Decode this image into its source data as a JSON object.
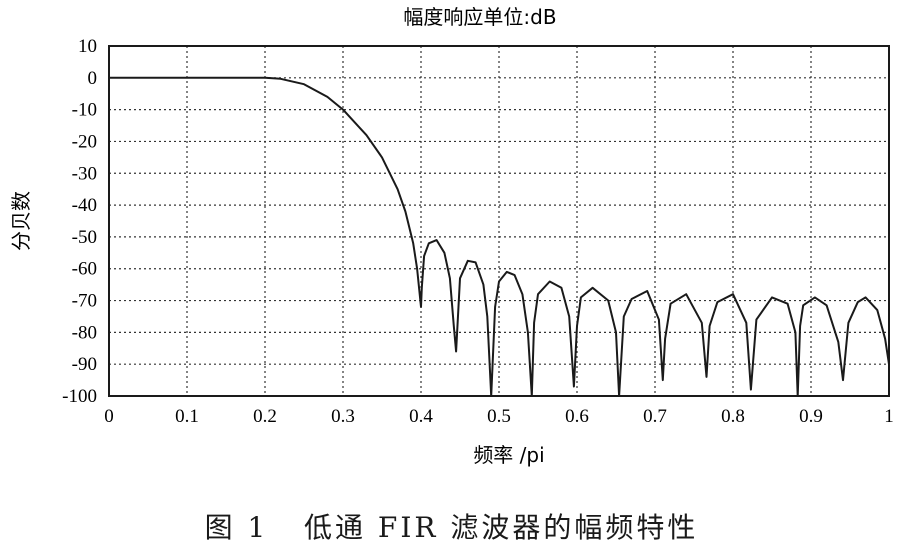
{
  "caption": "图 1   低通 FIR 滤波器的幅频特性",
  "chart_data": {
    "type": "line",
    "title": "幅度响应单位:dB",
    "xlabel": "频率 /pi",
    "ylabel": "分贝数",
    "xlim": [
      0,
      1
    ],
    "ylim": [
      -100,
      10
    ],
    "xticks": [
      0,
      0.1,
      0.2,
      0.3,
      0.4,
      0.5,
      0.6,
      0.7,
      0.8,
      0.9,
      1
    ],
    "xtick_labels": [
      "0",
      "0.1",
      "0.2",
      "0.3",
      "0.4",
      "0.5",
      "0.6",
      "0.7",
      "0.8",
      "0.9",
      "1"
    ],
    "yticks": [
      10,
      0,
      -10,
      -20,
      -30,
      -40,
      -50,
      -60,
      -70,
      -80,
      -90,
      -100
    ],
    "ytick_labels": [
      "10",
      "0",
      "-10",
      "-20",
      "-30",
      "-40",
      "-50",
      "-60",
      "-70",
      "-80",
      "-90",
      "-100"
    ],
    "grid": true,
    "grid_style": "dotted",
    "line_color": "#1a1a1a",
    "series": [
      {
        "x": [
          0,
          0.05,
          0.1,
          0.15,
          0.2,
          0.22,
          0.25,
          0.28,
          0.3,
          0.33,
          0.35,
          0.37,
          0.38,
          0.39,
          0.395,
          0.4,
          0.401,
          0.404,
          0.41,
          0.42,
          0.43,
          0.437,
          0.442,
          0.445,
          0.45,
          0.46,
          0.47,
          0.48,
          0.485,
          0.49,
          0.495,
          0.5,
          0.51,
          0.52,
          0.53,
          0.537,
          0.542,
          0.545,
          0.55,
          0.565,
          0.58,
          0.59,
          0.596,
          0.6,
          0.605,
          0.62,
          0.64,
          0.65,
          0.654,
          0.66,
          0.67,
          0.69,
          0.705,
          0.71,
          0.713,
          0.72,
          0.74,
          0.76,
          0.766,
          0.77,
          0.78,
          0.8,
          0.817,
          0.823,
          0.83,
          0.85,
          0.87,
          0.88,
          0.883,
          0.886,
          0.89,
          0.905,
          0.92,
          0.935,
          0.941,
          0.948,
          0.96,
          0.97,
          0.985,
          0.995,
          1.0
        ],
        "y": [
          0,
          0,
          0,
          0,
          0,
          -0.3,
          -2,
          -6,
          -10,
          -18,
          -25,
          -35,
          -42,
          -52,
          -60,
          -72,
          -66,
          -56,
          -52,
          -51,
          -55,
          -63,
          -78,
          -86,
          -63,
          -57.5,
          -58,
          -65,
          -75,
          -100,
          -72,
          -64,
          -61,
          -62,
          -68,
          -80,
          -100,
          -77,
          -68,
          -64,
          -66,
          -75,
          -97,
          -78,
          -69,
          -66,
          -70,
          -80,
          -100,
          -75,
          -69.5,
          -67,
          -76,
          -95,
          -82,
          -71,
          -68,
          -77,
          -94,
          -78,
          -70.5,
          -68,
          -77,
          -98,
          -76,
          -69,
          -71,
          -80,
          -100,
          -78,
          -71.5,
          -69,
          -71.5,
          -83,
          -95,
          -77,
          -70.5,
          -69,
          -73,
          -82,
          -90
        ]
      }
    ]
  }
}
